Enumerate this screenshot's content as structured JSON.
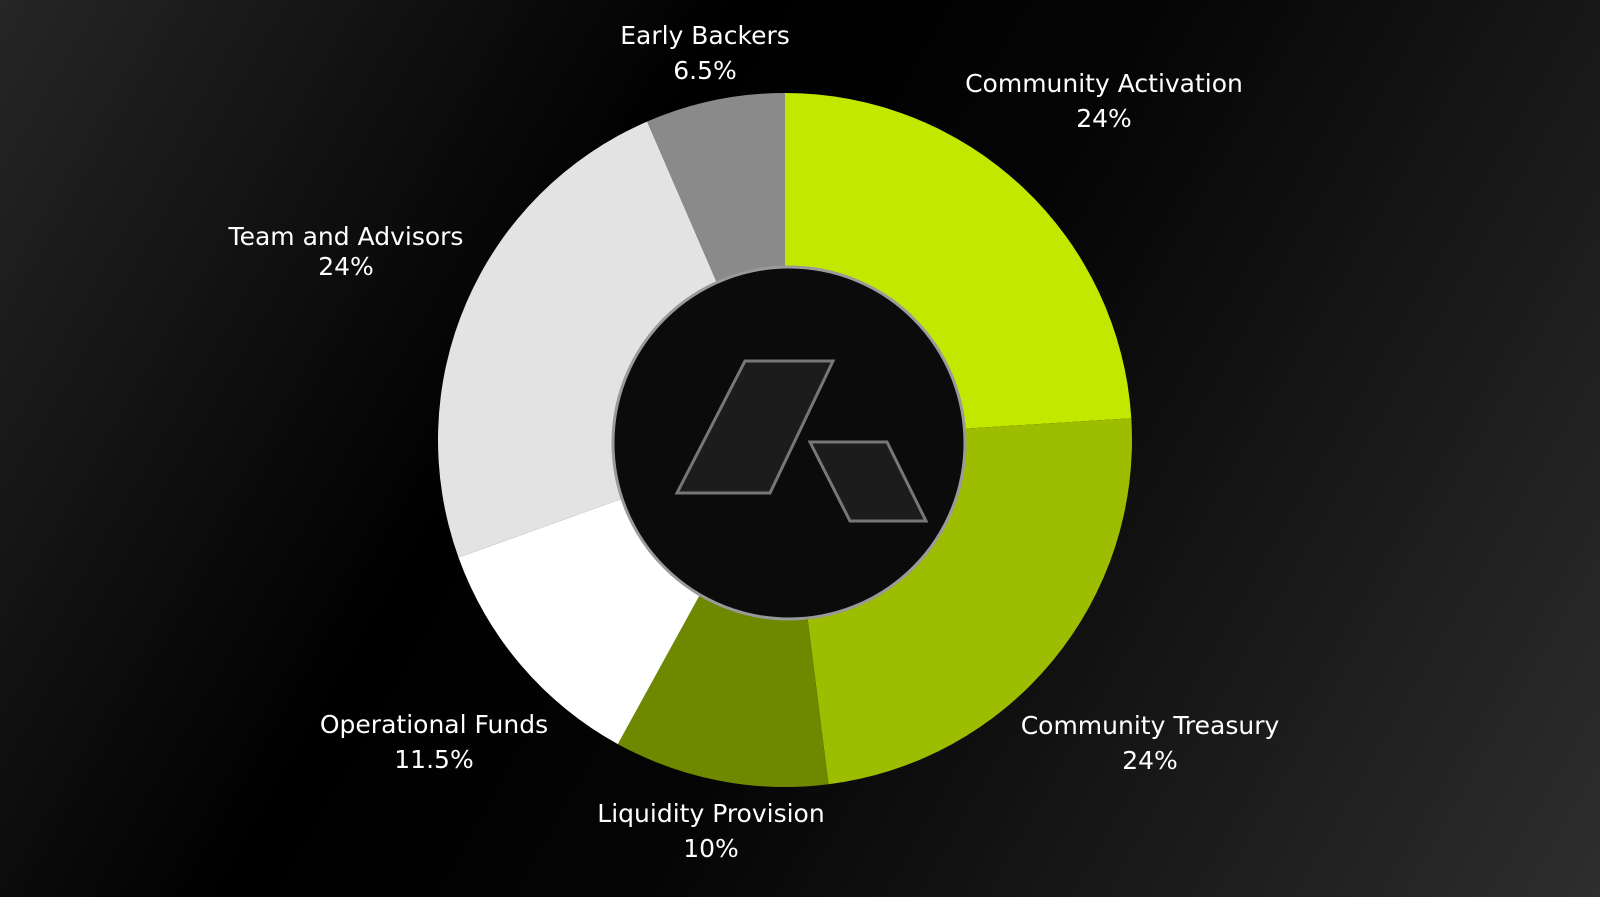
{
  "chart_data": {
    "type": "pie",
    "variant": "donut",
    "title": "",
    "slices": [
      {
        "label": "Community Activation",
        "value": 24,
        "value_label": "24%",
        "color": "#c3e800"
      },
      {
        "label": "Community Treasury",
        "value": 24,
        "value_label": "24%",
        "color": "#9dbd00"
      },
      {
        "label": "Liquidity Provision",
        "value": 10,
        "value_label": "10%",
        "color": "#6e8900"
      },
      {
        "label": "Operational Funds",
        "value": 11.5,
        "value_label": "11.5%",
        "color": "#ffffff"
      },
      {
        "label": "Team and Advisors",
        "value": 24,
        "value_label": "24%",
        "color": "#e3e3e3"
      },
      {
        "label": "Early Backers",
        "value": 6.5,
        "value_label": "6.5%",
        "color": "#8a8a8a"
      }
    ],
    "start_angle": "12 o'clock",
    "direction": "clockwise",
    "legend": "none",
    "center_icon": "brand-logo-icon"
  }
}
